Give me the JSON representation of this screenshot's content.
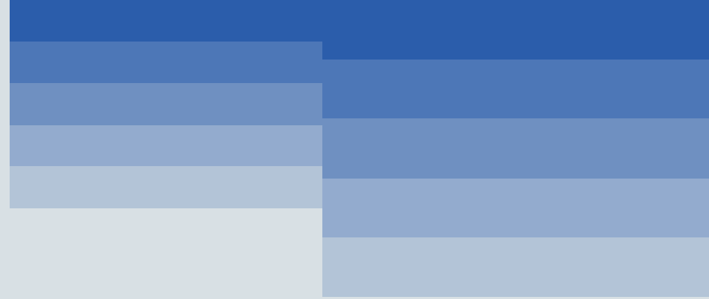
{
  "colors": {
    "background": "#d8e0e4",
    "left_bands": [
      "#2b5dab",
      "#4d77b7",
      "#6f90c1",
      "#93abce",
      "#b3c4d7"
    ],
    "right_bands": [
      "#2b5dab",
      "#4d77b7",
      "#6f90c1",
      "#93abce",
      "#b3c4d7"
    ]
  }
}
